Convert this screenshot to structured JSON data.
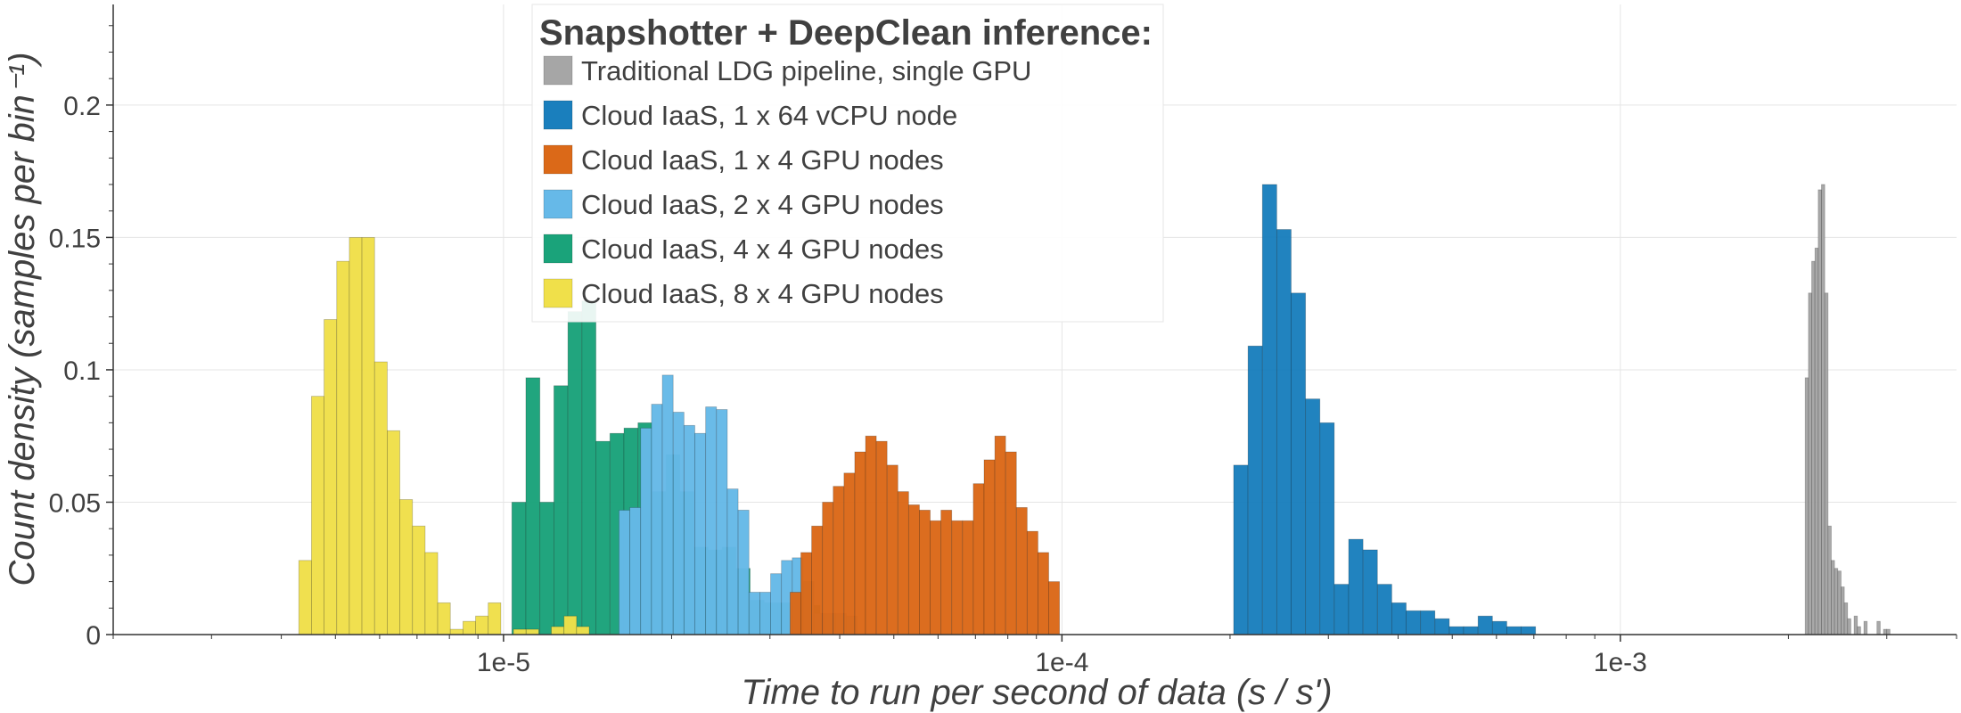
{
  "chart_data": {
    "type": "bar",
    "subtype": "histogram",
    "xlabel": "Time to run per second of data (s / s')",
    "ylabel": "Count density (samples per bin⁻¹)",
    "x_scale": "log",
    "xlim": [
      2e-06,
      0.004
    ],
    "ylim": [
      0,
      0.238
    ],
    "x_ticks": [
      {
        "value": 1e-05,
        "label": "1e-5"
      },
      {
        "value": 0.0001,
        "label": "1e-4"
      },
      {
        "value": 0.001,
        "label": "1e-3"
      }
    ],
    "y_ticks": [
      {
        "value": 0,
        "label": "0"
      },
      {
        "value": 0.05,
        "label": "0.05"
      },
      {
        "value": 0.1,
        "label": "0.1"
      },
      {
        "value": 0.15,
        "label": "0.15"
      },
      {
        "value": 0.2,
        "label": "0.2"
      }
    ],
    "grid": true,
    "legend": {
      "title": "Snapshotter + DeepClean inference:",
      "position": "top-center"
    },
    "series": [
      {
        "name": "Cloud IaaS, 4 x 4 GPU nodes",
        "color": "#1aa37a",
        "bin_start": 1.035e-05,
        "bin_end": 3.69e-05,
        "values": [
          0.05,
          0.097,
          0.05,
          0.094,
          0.122,
          0.126,
          0.073,
          0.076,
          0.078,
          0.08,
          0.054,
          0.068,
          0.054,
          0.033,
          0.032,
          0.033,
          0.025,
          0.013,
          0.012,
          0.012,
          0.012,
          0.011
        ]
      },
      {
        "name": "Cloud IaaS, 2 x 4 GPU nodes",
        "color": "#66b9e8",
        "bin_start": 1.61e-05,
        "bin_end": 4.3e-05,
        "values": [
          0.047,
          0.048,
          0.078,
          0.087,
          0.098,
          0.084,
          0.079,
          0.076,
          0.086,
          0.085,
          0.055,
          0.047,
          0.016,
          0.016,
          0.023,
          0.028,
          0.029,
          0.02,
          0.008,
          0.008,
          0.008,
          0.007
        ]
      },
      {
        "name": "Cloud IaaS, 1 x 4 GPU nodes",
        "color": "#db6918",
        "bin_start": 3.26e-05,
        "bin_end": 9.9e-05,
        "values": [
          0.016,
          0.031,
          0.041,
          0.05,
          0.056,
          0.061,
          0.069,
          0.075,
          0.073,
          0.064,
          0.054,
          0.049,
          0.047,
          0.043,
          0.047,
          0.043,
          0.043,
          0.057,
          0.066,
          0.075,
          0.069,
          0.048,
          0.039,
          0.031,
          0.02
        ]
      },
      {
        "name": "Cloud IaaS, 1 x 64 vCPU node",
        "color": "#1a7fbd",
        "bin_start": 0.000203,
        "bin_end": 0.000705,
        "values": [
          0.064,
          0.109,
          0.17,
          0.153,
          0.129,
          0.089,
          0.08,
          0.019,
          0.036,
          0.032,
          0.019,
          0.012,
          0.009,
          0.009,
          0.006,
          0.003,
          0.003,
          0.007,
          0.005,
          0.003,
          0.003
        ]
      },
      {
        "name": "Cloud IaaS, 8 x 4 GPU nodes",
        "color": "#f0e04a",
        "bin_start": 4.3e-06,
        "bin_end": 1.5e-05,
        "values": [
          0.028,
          0.09,
          0.119,
          0.141,
          0.15,
          0.15,
          0.103,
          0.077,
          0.051,
          0.041,
          0.031,
          0.012,
          0.002,
          0.005,
          0.007,
          0.012,
          0.0,
          0.002,
          0.002,
          0.0,
          0.003,
          0.007,
          0.003,
          0.0
        ]
      },
      {
        "name": "Traditional LDG pipeline, single GPU",
        "color": "#a6a6a6",
        "bin_start": 0.002143,
        "bin_end": 0.00304,
        "values": [
          0.097,
          0.129,
          0.141,
          0.146,
          0.168,
          0.17,
          0.129,
          0.041,
          0.028,
          0.025,
          0.024,
          0.018,
          0.012,
          0.006,
          0.0,
          0.007,
          0.003,
          0.0,
          0.005,
          0.0,
          0.0,
          0.0,
          0.005,
          0.0,
          0.002,
          0.002
        ]
      }
    ],
    "legend_order": [
      5,
      3,
      2,
      1,
      0,
      4
    ]
  }
}
